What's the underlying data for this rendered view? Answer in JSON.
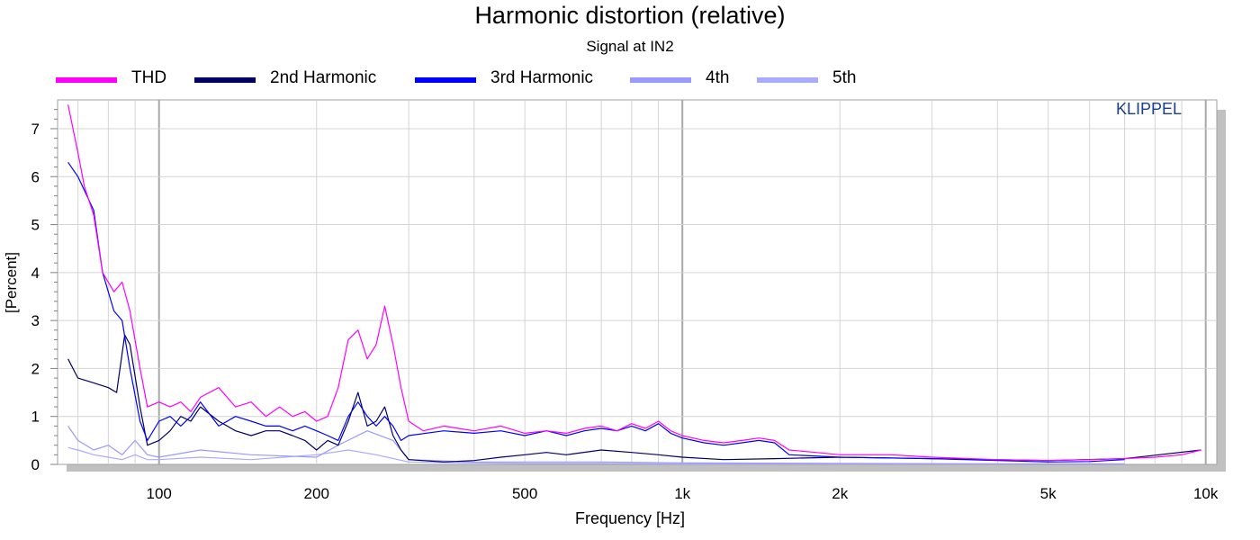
{
  "chart_data": {
    "type": "line",
    "title": "Harmonic distortion (relative)",
    "subtitle": "Signal at IN2",
    "xlabel": "Frequency [Hz]",
    "ylabel": "[Percent]",
    "xscale": "log",
    "xlim": [
      64,
      10500
    ],
    "ylim": [
      0,
      7.6
    ],
    "x_ticks": [
      {
        "value": 100,
        "label": "100"
      },
      {
        "value": 200,
        "label": "200"
      },
      {
        "value": 500,
        "label": "500"
      },
      {
        "value": 1000,
        "label": "1k"
      },
      {
        "value": 2000,
        "label": "2k"
      },
      {
        "value": 5000,
        "label": "5k"
      },
      {
        "value": 10000,
        "label": "10k"
      }
    ],
    "y_ticks": [
      {
        "value": 0,
        "label": "0"
      },
      {
        "value": 1,
        "label": "1"
      },
      {
        "value": 2,
        "label": "2"
      },
      {
        "value": 3,
        "label": "3"
      },
      {
        "value": 4,
        "label": "4"
      },
      {
        "value": 5,
        "label": "5"
      },
      {
        "value": 6,
        "label": "6"
      },
      {
        "value": 7,
        "label": "7"
      }
    ],
    "grid": true,
    "legend_position": "top",
    "series": [
      {
        "name": "THD",
        "color": "#ff00ff",
        "points": [
          [
            67,
            7.5
          ],
          [
            70,
            6.5
          ],
          [
            72,
            5.8
          ],
          [
            75,
            5.2
          ],
          [
            78,
            4.0
          ],
          [
            82,
            3.6
          ],
          [
            85,
            3.8
          ],
          [
            88,
            3.2
          ],
          [
            92,
            2.0
          ],
          [
            95,
            1.2
          ],
          [
            100,
            1.3
          ],
          [
            105,
            1.2
          ],
          [
            110,
            1.3
          ],
          [
            115,
            1.1
          ],
          [
            120,
            1.4
          ],
          [
            130,
            1.6
          ],
          [
            140,
            1.2
          ],
          [
            150,
            1.3
          ],
          [
            160,
            1.0
          ],
          [
            170,
            1.2
          ],
          [
            180,
            1.0
          ],
          [
            190,
            1.1
          ],
          [
            200,
            0.9
          ],
          [
            210,
            1.0
          ],
          [
            220,
            1.6
          ],
          [
            230,
            2.6
          ],
          [
            240,
            2.8
          ],
          [
            250,
            2.2
          ],
          [
            260,
            2.5
          ],
          [
            270,
            3.3
          ],
          [
            280,
            2.5
          ],
          [
            290,
            1.6
          ],
          [
            300,
            0.9
          ],
          [
            320,
            0.7
          ],
          [
            350,
            0.8
          ],
          [
            400,
            0.7
          ],
          [
            450,
            0.8
          ],
          [
            500,
            0.65
          ],
          [
            550,
            0.7
          ],
          [
            600,
            0.65
          ],
          [
            650,
            0.75
          ],
          [
            700,
            0.8
          ],
          [
            750,
            0.7
          ],
          [
            800,
            0.85
          ],
          [
            850,
            0.75
          ],
          [
            900,
            0.9
          ],
          [
            950,
            0.7
          ],
          [
            1000,
            0.6
          ],
          [
            1100,
            0.5
          ],
          [
            1200,
            0.45
          ],
          [
            1300,
            0.5
          ],
          [
            1400,
            0.55
          ],
          [
            1500,
            0.5
          ],
          [
            1600,
            0.3
          ],
          [
            1800,
            0.25
          ],
          [
            2000,
            0.2
          ],
          [
            2500,
            0.2
          ],
          [
            3000,
            0.15
          ],
          [
            4000,
            0.1
          ],
          [
            5000,
            0.08
          ],
          [
            6000,
            0.1
          ],
          [
            7000,
            0.12
          ],
          [
            8000,
            0.15
          ],
          [
            9000,
            0.2
          ],
          [
            9800,
            0.3
          ]
        ]
      },
      {
        "name": "2nd Harmonic",
        "color": "#000066",
        "points": [
          [
            67,
            2.2
          ],
          [
            70,
            1.8
          ],
          [
            75,
            1.7
          ],
          [
            80,
            1.6
          ],
          [
            83,
            1.5
          ],
          [
            86,
            2.7
          ],
          [
            88,
            2.5
          ],
          [
            92,
            1.2
          ],
          [
            95,
            0.4
          ],
          [
            100,
            0.5
          ],
          [
            105,
            0.7
          ],
          [
            110,
            1.0
          ],
          [
            115,
            0.9
          ],
          [
            120,
            1.2
          ],
          [
            130,
            0.9
          ],
          [
            140,
            0.7
          ],
          [
            150,
            0.6
          ],
          [
            160,
            0.7
          ],
          [
            170,
            0.7
          ],
          [
            180,
            0.6
          ],
          [
            190,
            0.5
          ],
          [
            200,
            0.3
          ],
          [
            210,
            0.5
          ],
          [
            220,
            0.4
          ],
          [
            230,
            0.9
          ],
          [
            240,
            1.5
          ],
          [
            250,
            0.8
          ],
          [
            260,
            0.9
          ],
          [
            270,
            1.2
          ],
          [
            280,
            0.6
          ],
          [
            290,
            0.3
          ],
          [
            300,
            0.1
          ],
          [
            350,
            0.05
          ],
          [
            400,
            0.08
          ],
          [
            450,
            0.15
          ],
          [
            500,
            0.2
          ],
          [
            550,
            0.25
          ],
          [
            600,
            0.2
          ],
          [
            700,
            0.3
          ],
          [
            800,
            0.25
          ],
          [
            900,
            0.2
          ],
          [
            1000,
            0.15
          ],
          [
            1200,
            0.1
          ],
          [
            1500,
            0.12
          ],
          [
            2000,
            0.15
          ],
          [
            3000,
            0.12
          ],
          [
            5000,
            0.08
          ],
          [
            7000,
            0.12
          ],
          [
            9800,
            0.3
          ]
        ]
      },
      {
        "name": "3rd Harmonic",
        "color": "#0000ff",
        "points": [
          [
            67,
            6.3
          ],
          [
            70,
            6.0
          ],
          [
            75,
            5.3
          ],
          [
            78,
            4.0
          ],
          [
            82,
            3.2
          ],
          [
            85,
            3.0
          ],
          [
            88,
            2.0
          ],
          [
            92,
            0.9
          ],
          [
            95,
            0.5
          ],
          [
            100,
            0.9
          ],
          [
            105,
            1.0
          ],
          [
            110,
            0.8
          ],
          [
            115,
            1.0
          ],
          [
            120,
            1.3
          ],
          [
            130,
            0.8
          ],
          [
            140,
            1.0
          ],
          [
            150,
            0.9
          ],
          [
            160,
            0.8
          ],
          [
            170,
            0.8
          ],
          [
            180,
            0.7
          ],
          [
            190,
            0.8
          ],
          [
            200,
            0.7
          ],
          [
            210,
            0.6
          ],
          [
            220,
            0.5
          ],
          [
            230,
            1.0
          ],
          [
            240,
            1.3
          ],
          [
            250,
            1.0
          ],
          [
            260,
            0.8
          ],
          [
            270,
            1.0
          ],
          [
            280,
            0.8
          ],
          [
            290,
            0.5
          ],
          [
            300,
            0.6
          ],
          [
            350,
            0.7
          ],
          [
            400,
            0.65
          ],
          [
            450,
            0.7
          ],
          [
            500,
            0.6
          ],
          [
            550,
            0.7
          ],
          [
            600,
            0.6
          ],
          [
            650,
            0.7
          ],
          [
            700,
            0.75
          ],
          [
            750,
            0.7
          ],
          [
            800,
            0.8
          ],
          [
            850,
            0.7
          ],
          [
            900,
            0.85
          ],
          [
            950,
            0.65
          ],
          [
            1000,
            0.55
          ],
          [
            1100,
            0.45
          ],
          [
            1200,
            0.4
          ],
          [
            1300,
            0.45
          ],
          [
            1400,
            0.5
          ],
          [
            1500,
            0.45
          ],
          [
            1600,
            0.2
          ],
          [
            2000,
            0.15
          ],
          [
            3000,
            0.12
          ],
          [
            5000,
            0.05
          ],
          [
            6000,
            0.06
          ],
          [
            7000,
            0.1
          ]
        ]
      },
      {
        "name": "4th",
        "color": "#9999ff",
        "points": [
          [
            67,
            0.8
          ],
          [
            70,
            0.5
          ],
          [
            75,
            0.3
          ],
          [
            80,
            0.4
          ],
          [
            85,
            0.2
          ],
          [
            90,
            0.5
          ],
          [
            95,
            0.2
          ],
          [
            100,
            0.15
          ],
          [
            120,
            0.3
          ],
          [
            150,
            0.2
          ],
          [
            200,
            0.15
          ],
          [
            220,
            0.4
          ],
          [
            250,
            0.7
          ],
          [
            280,
            0.5
          ],
          [
            300,
            0.1
          ],
          [
            400,
            0.05
          ],
          [
            500,
            0.05
          ],
          [
            700,
            0.05
          ],
          [
            1000,
            0.03
          ],
          [
            2000,
            0.02
          ],
          [
            5000,
            0.01
          ],
          [
            7000,
            0.01
          ]
        ]
      },
      {
        "name": "5th",
        "color": "#aaaaff",
        "points": [
          [
            67,
            0.35
          ],
          [
            70,
            0.3
          ],
          [
            75,
            0.2
          ],
          [
            80,
            0.15
          ],
          [
            85,
            0.1
          ],
          [
            90,
            0.2
          ],
          [
            95,
            0.1
          ],
          [
            100,
            0.1
          ],
          [
            120,
            0.15
          ],
          [
            150,
            0.1
          ],
          [
            200,
            0.2
          ],
          [
            230,
            0.3
          ],
          [
            260,
            0.2
          ],
          [
            300,
            0.05
          ],
          [
            400,
            0.03
          ],
          [
            500,
            0.02
          ],
          [
            700,
            0.02
          ],
          [
            1000,
            0.01
          ],
          [
            2000,
            0.01
          ],
          [
            5000,
            0.005
          ],
          [
            7000,
            0.005
          ]
        ]
      }
    ]
  },
  "watermark": "KLIPPEL"
}
